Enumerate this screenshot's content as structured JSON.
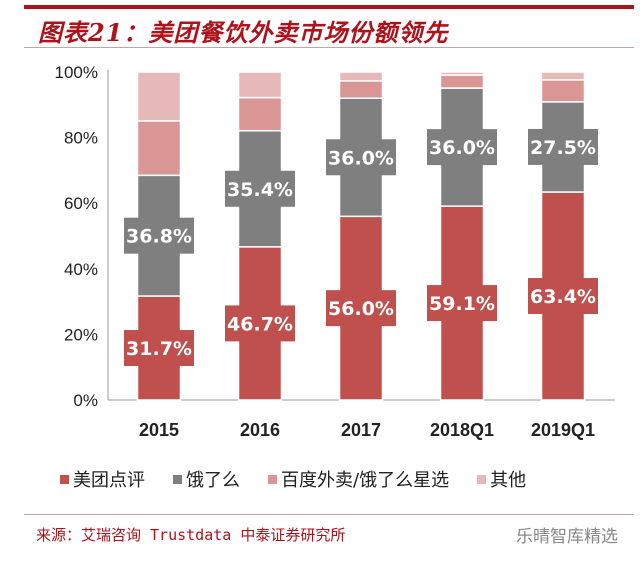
{
  "title": "图表21：美团餐饮外卖市场份额领先",
  "source": "来源：艾瑞咨询 Trustdata 中泰证券研究所",
  "watermark": "乐晴智库精选",
  "chart_data": {
    "type": "bar",
    "stacked": true,
    "categories": [
      "2015",
      "2016",
      "2017",
      "2018Q1",
      "2019Q1"
    ],
    "series": [
      {
        "name": "美团点评",
        "color": "#c0504d",
        "values": [
          31.7,
          46.7,
          56.0,
          59.1,
          63.4
        ],
        "labels": [
          "31.7%",
          "46.7%",
          "56.0%",
          "59.1%",
          "63.4%"
        ]
      },
      {
        "name": "饿了么",
        "color": "#7f7f7f",
        "values": [
          36.8,
          35.4,
          36.0,
          36.0,
          27.5
        ],
        "labels": [
          "36.8%",
          "35.4%",
          "36.0%",
          "36.0%",
          "27.5%"
        ]
      },
      {
        "name": "百度外卖/饿了么星选",
        "color": "#d99694",
        "values": [
          16.6,
          10.1,
          5.3,
          4.0,
          6.7
        ]
      },
      {
        "name": "其他",
        "color": "#e6b9b8",
        "values": [
          14.9,
          7.8,
          2.7,
          0.9,
          2.4
        ]
      }
    ],
    "yticks": [
      "0%",
      "20%",
      "40%",
      "60%",
      "80%",
      "100%"
    ],
    "ylim": [
      0,
      100
    ],
    "grid": false,
    "legend": "bottom"
  }
}
